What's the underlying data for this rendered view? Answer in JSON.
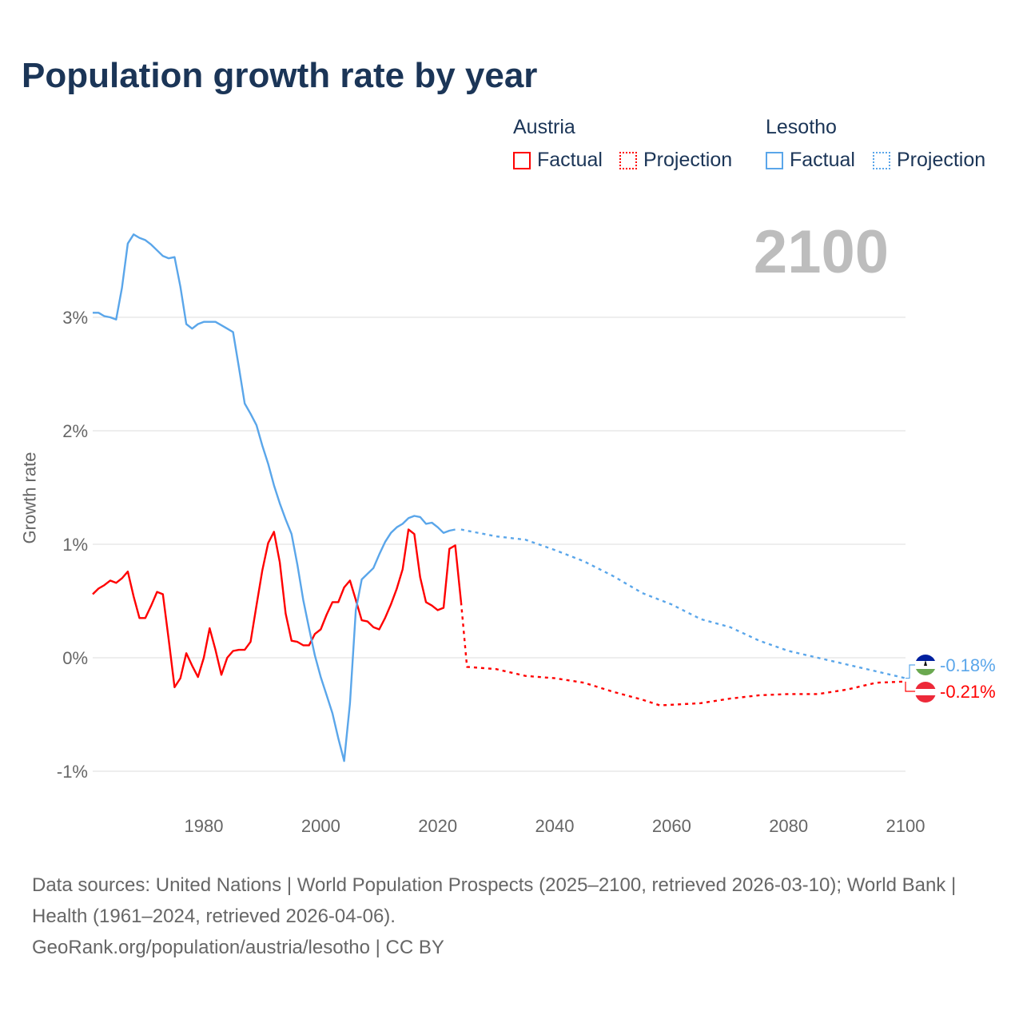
{
  "title": "Population growth rate by year",
  "current_year": "2100",
  "legend": {
    "groups": [
      {
        "name": "Austria",
        "factual_label": "Factual",
        "projection_label": "Projection",
        "color": "#ff0000"
      },
      {
        "name": "Lesotho",
        "factual_label": "Factual",
        "projection_label": "Projection",
        "color": "#5aa6ea"
      }
    ]
  },
  "end_labels": {
    "lesotho": "-0.18%",
    "austria": "-0.21%"
  },
  "footer": {
    "line1": "Data sources: United Nations | World Population Prospects (2025–2100, retrieved 2026-03-10); World Bank | Health (1961–2024, retrieved 2026-04-06).",
    "line2": "GeoRank.org/population/austria/lesotho | CC BY"
  },
  "chart_data": {
    "type": "line",
    "title": "Population growth rate by year",
    "xlabel": "",
    "ylabel": "Growth rate",
    "xlim": [
      1961,
      2100
    ],
    "ylim": [
      -1.2,
      3.9
    ],
    "x_ticks": [
      1980,
      2000,
      2020,
      2040,
      2060,
      2080,
      2100
    ],
    "y_ticks": [
      {
        "v": 3,
        "label": "3%"
      },
      {
        "v": 2,
        "label": "2%"
      },
      {
        "v": 1,
        "label": "1%"
      },
      {
        "v": 0,
        "label": "0%"
      },
      {
        "v": -1,
        "label": "-1%"
      }
    ],
    "grid": true,
    "series": [
      {
        "name": "Austria Factual",
        "color": "#ff0000",
        "dashed": false,
        "x_start": 1961,
        "values": [
          0.56,
          0.61,
          0.64,
          0.68,
          0.66,
          0.7,
          0.76,
          0.54,
          0.35,
          0.35,
          0.46,
          0.58,
          0.56,
          0.16,
          -0.26,
          -0.18,
          0.04,
          -0.07,
          -0.17,
          0.0,
          0.26,
          0.07,
          -0.15,
          0.0,
          0.06,
          0.07,
          0.07,
          0.14,
          0.46,
          0.77,
          1.01,
          1.11,
          0.84,
          0.39,
          0.15,
          0.14,
          0.11,
          0.11,
          0.21,
          0.25,
          0.38,
          0.49,
          0.49,
          0.62,
          0.68,
          0.51,
          0.33,
          0.32,
          0.27,
          0.25,
          0.35,
          0.47,
          0.61,
          0.78,
          1.13,
          1.09,
          0.71,
          0.49,
          0.46,
          0.42,
          0.44,
          0.96,
          0.99,
          0.49
        ]
      },
      {
        "name": "Austria Projection",
        "color": "#ff0000",
        "dashed": true,
        "x": [
          2024,
          2025,
          2030,
          2035,
          2040,
          2045,
          2050,
          2055,
          2058,
          2065,
          2070,
          2075,
          2080,
          2085,
          2090,
          2095,
          2100
        ],
        "values": [
          0.49,
          -0.08,
          -0.1,
          -0.16,
          -0.18,
          -0.22,
          -0.3,
          -0.37,
          -0.42,
          -0.4,
          -0.36,
          -0.33,
          -0.32,
          -0.32,
          -0.28,
          -0.22,
          -0.21
        ]
      },
      {
        "name": "Lesotho Factual",
        "color": "#5aa6ea",
        "dashed": false,
        "x_start": 1961,
        "values": [
          3.04,
          3.04,
          3.01,
          3.0,
          2.98,
          3.26,
          3.65,
          3.73,
          3.7,
          3.68,
          3.64,
          3.59,
          3.54,
          3.52,
          3.53,
          3.27,
          2.94,
          2.9,
          2.94,
          2.96,
          2.96,
          2.96,
          2.93,
          2.9,
          2.87,
          2.56,
          2.24,
          2.15,
          2.05,
          1.87,
          1.71,
          1.52,
          1.36,
          1.22,
          1.09,
          0.82,
          0.51,
          0.26,
          0.02,
          -0.17,
          -0.33,
          -0.49,
          -0.71,
          -0.91,
          -0.4,
          0.42,
          0.69,
          0.74,
          0.79,
          0.91,
          1.02,
          1.1,
          1.15,
          1.18,
          1.23,
          1.25,
          1.24,
          1.18,
          1.19,
          1.15,
          1.1,
          1.12,
          1.13
        ]
      },
      {
        "name": "Lesotho Projection",
        "color": "#5aa6ea",
        "dashed": true,
        "x": [
          2024,
          2025,
          2030,
          2035,
          2040,
          2045,
          2050,
          2055,
          2060,
          2065,
          2070,
          2075,
          2080,
          2085,
          2090,
          2095,
          2100
        ],
        "values": [
          1.13,
          1.12,
          1.07,
          1.04,
          0.95,
          0.85,
          0.72,
          0.57,
          0.47,
          0.34,
          0.27,
          0.15,
          0.06,
          0.0,
          -0.06,
          -0.12,
          -0.18
        ]
      }
    ]
  }
}
